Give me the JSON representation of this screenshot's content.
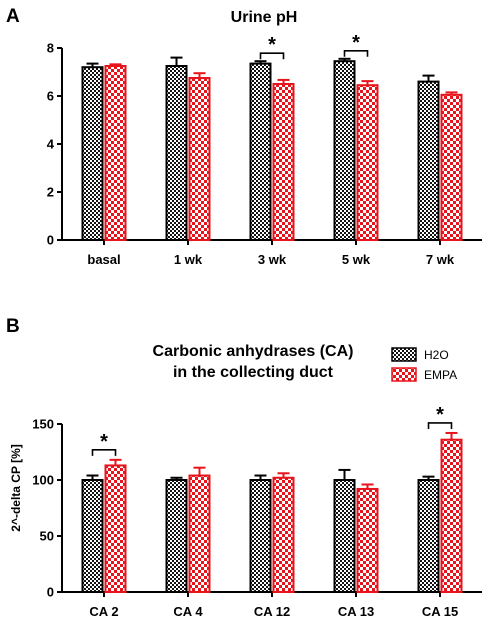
{
  "colors": {
    "h2o_edge": "#000000",
    "h2o_fill": "#9a9a9a",
    "empa_edge": "#e8141c",
    "empa_fill": "#ffb3b3",
    "axis": "#000000"
  },
  "chart_data": [
    {
      "panel_label": "A",
      "type": "bar",
      "title": "Urine pH",
      "xlabel": "",
      "ylabel": "",
      "ylim": [
        0,
        8
      ],
      "yticks": [
        "0",
        "2",
        "4",
        "6",
        "8"
      ],
      "categories": [
        "basal",
        "1 wk",
        "3 wk",
        "5 wk",
        "7 wk"
      ],
      "series": [
        {
          "name": "H2O",
          "values": [
            7.2,
            7.25,
            7.35,
            7.45,
            6.6
          ],
          "errors": [
            0.15,
            0.35,
            0.1,
            0.1,
            0.25
          ]
        },
        {
          "name": "EMPA",
          "values": [
            7.25,
            6.75,
            6.5,
            6.45,
            6.05
          ],
          "errors": [
            0.07,
            0.2,
            0.17,
            0.17,
            0.1
          ]
        }
      ],
      "significance": [
        {
          "category": "3 wk",
          "label": "*"
        },
        {
          "category": "5 wk",
          "label": "*"
        }
      ],
      "grid": false,
      "legend": "none"
    },
    {
      "panel_label": "B",
      "type": "bar",
      "title": "Carbonic anhydrases (CA)",
      "subtitle": "in the collecting duct",
      "xlabel": "",
      "ylabel": "2^-delta CP [%]",
      "ylim": [
        0,
        150
      ],
      "yticks": [
        "0",
        "50",
        "100",
        "150"
      ],
      "categories": [
        "CA 2",
        "CA 4",
        "CA 12",
        "CA 13",
        "CA 15"
      ],
      "series": [
        {
          "name": "H2O",
          "values": [
            100,
            100,
            100,
            100,
            100
          ],
          "errors": [
            4,
            2,
            4,
            9,
            3
          ]
        },
        {
          "name": "EMPA",
          "values": [
            113,
            104,
            102,
            92,
            136
          ],
          "errors": [
            5,
            7,
            4,
            4,
            6
          ]
        }
      ],
      "significance": [
        {
          "category": "CA 2",
          "label": "*"
        },
        {
          "category": "CA 15",
          "label": "*"
        }
      ],
      "grid": false,
      "legend": "top-right"
    }
  ]
}
